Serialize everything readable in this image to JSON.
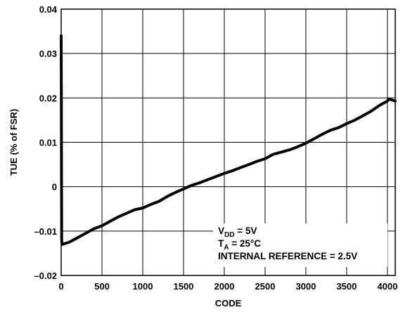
{
  "chart_data": {
    "type": "line",
    "title": "",
    "xlabel": "CODE",
    "ylabel": "TUE (% of FSR)",
    "xlim": [
      0,
      4096
    ],
    "ylim": [
      -0.02,
      0.04
    ],
    "grid": true,
    "x_ticks": [
      0,
      500,
      1000,
      1500,
      2000,
      2500,
      3000,
      3500,
      4000
    ],
    "x_tick_labels": [
      "0",
      "500",
      "1000",
      "1500",
      "2000",
      "2500",
      "3000",
      "3500",
      "4000"
    ],
    "y_ticks": [
      -0.02,
      -0.01,
      0,
      0.01,
      0.02,
      0.03,
      0.04
    ],
    "y_tick_labels": [
      "–0.02",
      "–0.01",
      "0",
      "0.01",
      "0.02",
      "0.03",
      "0.04"
    ],
    "series": [
      {
        "points": [
          [
            0,
            0.034
          ],
          [
            2,
            0.02
          ],
          [
            4,
            0.002
          ],
          [
            6,
            -0.012
          ],
          [
            10,
            -0.013
          ],
          [
            100,
            -0.0125
          ],
          [
            200,
            -0.0115
          ],
          [
            300,
            -0.0105
          ],
          [
            400,
            -0.0095
          ],
          [
            500,
            -0.0088
          ],
          [
            600,
            -0.0078
          ],
          [
            700,
            -0.0068
          ],
          [
            800,
            -0.006
          ],
          [
            900,
            -0.0052
          ],
          [
            1000,
            -0.0048
          ],
          [
            1100,
            -0.004
          ],
          [
            1200,
            -0.0033
          ],
          [
            1300,
            -0.0022
          ],
          [
            1400,
            -0.0013
          ],
          [
            1500,
            -0.0005
          ],
          [
            1600,
            0.0003
          ],
          [
            1700,
            0.0009
          ],
          [
            1800,
            0.0016
          ],
          [
            1900,
            0.0023
          ],
          [
            2000,
            0.003
          ],
          [
            2100,
            0.0036
          ],
          [
            2200,
            0.0043
          ],
          [
            2300,
            0.005
          ],
          [
            2400,
            0.0057
          ],
          [
            2500,
            0.0063
          ],
          [
            2600,
            0.0073
          ],
          [
            2700,
            0.0078
          ],
          [
            2800,
            0.0083
          ],
          [
            2900,
            0.009
          ],
          [
            3000,
            0.0098
          ],
          [
            3100,
            0.0108
          ],
          [
            3200,
            0.0118
          ],
          [
            3300,
            0.0127
          ],
          [
            3400,
            0.0133
          ],
          [
            3500,
            0.0142
          ],
          [
            3600,
            0.015
          ],
          [
            3700,
            0.016
          ],
          [
            3800,
            0.017
          ],
          [
            3900,
            0.0183
          ],
          [
            4000,
            0.0193
          ],
          [
            4020,
            0.0198
          ],
          [
            4060,
            0.0195
          ],
          [
            4095,
            0.0193
          ]
        ]
      }
    ],
    "annotation": {
      "lines": [
        {
          "main": "V",
          "sub": "DD",
          "rest": " = 5V"
        },
        {
          "main": "T",
          "sub": "A",
          "rest": " = 25°C"
        },
        {
          "main": "INTERNAL REFERENCE = 2.5V",
          "sub": "",
          "rest": ""
        }
      ]
    }
  }
}
